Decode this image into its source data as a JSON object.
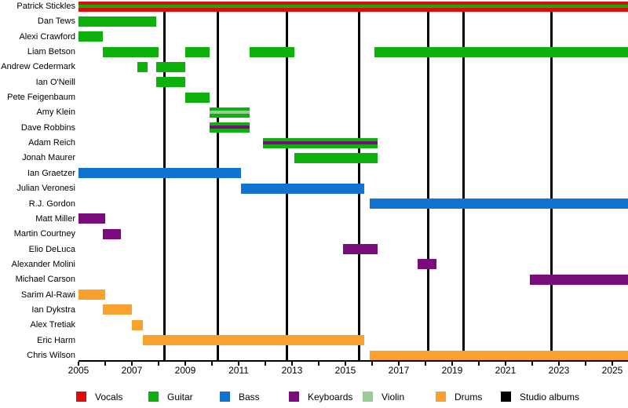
{
  "colors": {
    "Vocals": "#DF0C0C",
    "Guitar": "#0CB10C",
    "Bass": "#1272D2",
    "Keyboards": "#7A0B7A",
    "Violin": "#9CCA9C",
    "Drums": "#F9A12D",
    "Studio albums": "#000000"
  },
  "chart_data": {
    "type": "timeline",
    "x_axis": {
      "start_year": 2005,
      "present_year": 2025.6,
      "tick_interval_years": 1,
      "label_interval_years": 2,
      "tick_labels": [
        "2005",
        "2007",
        "2009",
        "2011",
        "2013",
        "2015",
        "2017",
        "2019",
        "2021",
        "2023",
        "2025"
      ]
    },
    "legend": [
      {
        "label": "Vocals",
        "color_role": "Vocals"
      },
      {
        "label": "Guitar",
        "color_role": "Guitar"
      },
      {
        "label": "Bass",
        "color_role": "Bass"
      },
      {
        "label": "Keyboards",
        "color_role": "Keyboards"
      },
      {
        "label": "Violin",
        "color_role": "Violin"
      },
      {
        "label": "Drums",
        "color_role": "Drums"
      },
      {
        "label": "Studio albums",
        "color_role": "Studio albums"
      }
    ],
    "album_release_years": [
      2008.2,
      2010.2,
      2012.8,
      2015.5,
      2018.1,
      2019.4,
      2022.7
    ],
    "members": [
      {
        "name": "Patrick Stickles",
        "segments": [
          {
            "from": 2005.0,
            "to": "present",
            "role": "Vocals",
            "sub_role": "Guitar"
          }
        ]
      },
      {
        "name": "Dan Tews",
        "segments": [
          {
            "from": 2005.0,
            "to": 2007.9,
            "role": "Guitar"
          }
        ]
      },
      {
        "name": "Alexi Crawford",
        "segments": [
          {
            "from": 2005.0,
            "to": 2005.9,
            "role": "Guitar"
          }
        ]
      },
      {
        "name": "Liam Betson",
        "segments": [
          {
            "from": 2005.9,
            "to": 2008.0,
            "role": "Guitar"
          },
          {
            "from": 2009.0,
            "to": 2009.9,
            "role": "Guitar"
          },
          {
            "from": 2011.4,
            "to": 2013.1,
            "role": "Guitar"
          },
          {
            "from": 2016.1,
            "to": "present",
            "role": "Guitar"
          }
        ]
      },
      {
        "name": "Andrew Cedermark",
        "segments": [
          {
            "from": 2007.2,
            "to": 2007.6,
            "role": "Guitar"
          },
          {
            "from": 2007.9,
            "to": 2009.0,
            "role": "Guitar"
          }
        ]
      },
      {
        "name": "Ian O'Neill",
        "segments": [
          {
            "from": 2007.9,
            "to": 2009.0,
            "role": "Guitar"
          }
        ]
      },
      {
        "name": "Pete Feigenbaum",
        "segments": [
          {
            "from": 2009.0,
            "to": 2009.9,
            "role": "Guitar"
          }
        ]
      },
      {
        "name": "Amy Klein",
        "segments": [
          {
            "from": 2009.9,
            "to": 2011.4,
            "role": "Guitar",
            "sub_role": "Violin"
          }
        ]
      },
      {
        "name": "Dave Robbins",
        "segments": [
          {
            "from": 2009.9,
            "to": 2011.4,
            "role": "Guitar",
            "sub_role": "Keyboards"
          }
        ]
      },
      {
        "name": "Adam Reich",
        "segments": [
          {
            "from": 2011.9,
            "to": 2016.2,
            "role": "Guitar",
            "sub_role": "Keyboards"
          }
        ]
      },
      {
        "name": "Jonah Maurer",
        "segments": [
          {
            "from": 2013.1,
            "to": 2016.2,
            "role": "Guitar"
          }
        ]
      },
      {
        "name": "Ian Graetzer",
        "segments": [
          {
            "from": 2005.0,
            "to": 2011.1,
            "role": "Bass"
          }
        ]
      },
      {
        "name": "Julian Veronesi",
        "segments": [
          {
            "from": 2011.1,
            "to": 2015.7,
            "role": "Bass"
          }
        ]
      },
      {
        "name": "R.J. Gordon",
        "segments": [
          {
            "from": 2015.9,
            "to": "present",
            "role": "Bass"
          }
        ]
      },
      {
        "name": "Matt Miller",
        "segments": [
          {
            "from": 2005.0,
            "to": 2006.0,
            "role": "Keyboards"
          }
        ]
      },
      {
        "name": "Martin Courtney",
        "segments": [
          {
            "from": 2005.9,
            "to": 2006.6,
            "role": "Keyboards"
          }
        ]
      },
      {
        "name": "Elio DeLuca",
        "segments": [
          {
            "from": 2014.9,
            "to": 2016.2,
            "role": "Keyboards"
          }
        ]
      },
      {
        "name": "Alexander Molini",
        "segments": [
          {
            "from": 2017.7,
            "to": 2018.4,
            "role": "Keyboards"
          }
        ]
      },
      {
        "name": "Michael Carson",
        "segments": [
          {
            "from": 2021.9,
            "to": "present",
            "role": "Keyboards"
          }
        ]
      },
      {
        "name": "Sarim Al-Rawi",
        "segments": [
          {
            "from": 2005.0,
            "to": 2006.0,
            "role": "Drums"
          }
        ]
      },
      {
        "name": "Ian Dykstra",
        "segments": [
          {
            "from": 2005.9,
            "to": 2007.0,
            "role": "Drums"
          }
        ]
      },
      {
        "name": "Alex Tretiak",
        "segments": [
          {
            "from": 2007.0,
            "to": 2007.4,
            "role": "Drums"
          }
        ]
      },
      {
        "name": "Eric Harm",
        "segments": [
          {
            "from": 2007.4,
            "to": 2015.7,
            "role": "Drums"
          }
        ]
      },
      {
        "name": "Chris Wilson",
        "segments": [
          {
            "from": 2015.9,
            "to": "present",
            "role": "Drums"
          }
        ]
      }
    ]
  }
}
